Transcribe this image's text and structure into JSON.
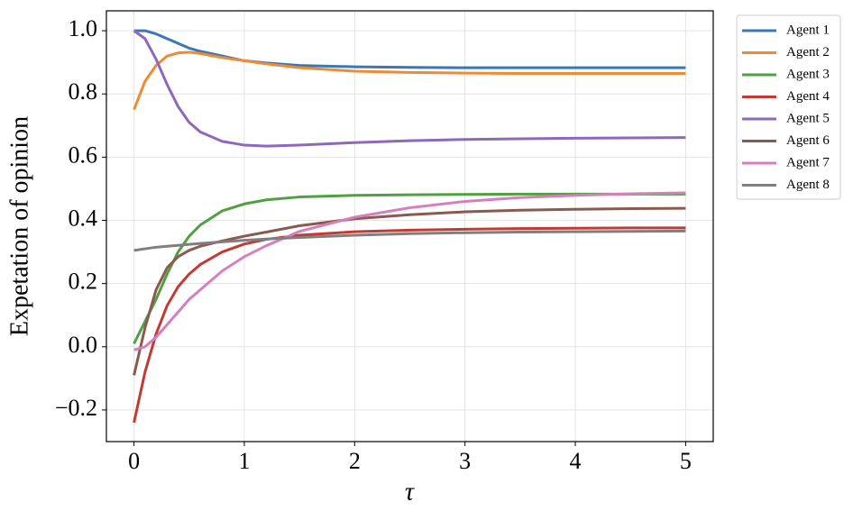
{
  "chart_data": {
    "type": "line",
    "xlabel": "τ",
    "ylabel": "Expetation of opinion",
    "x": [
      0,
      0.1,
      0.2,
      0.3,
      0.4,
      0.5,
      0.6,
      0.8,
      1.0,
      1.2,
      1.5,
      2,
      2.5,
      3,
      3.5,
      4,
      4.5,
      5
    ],
    "series": [
      {
        "name": "Agent 1",
        "color": "#3a78b4",
        "values": [
          1.0,
          1.0,
          0.99,
          0.975,
          0.96,
          0.945,
          0.935,
          0.92,
          0.905,
          0.898,
          0.89,
          0.886,
          0.884,
          0.883,
          0.883,
          0.883,
          0.883,
          0.883
        ]
      },
      {
        "name": "Agent 2",
        "color": "#f08a34",
        "values": [
          0.75,
          0.84,
          0.89,
          0.92,
          0.93,
          0.932,
          0.928,
          0.915,
          0.905,
          0.895,
          0.883,
          0.872,
          0.868,
          0.866,
          0.865,
          0.865,
          0.865,
          0.865
        ]
      },
      {
        "name": "Agent 3",
        "color": "#4fa040",
        "values": [
          0.01,
          0.08,
          0.15,
          0.23,
          0.3,
          0.35,
          0.385,
          0.43,
          0.452,
          0.465,
          0.474,
          0.479,
          0.481,
          0.482,
          0.483,
          0.483,
          0.483,
          0.483
        ]
      },
      {
        "name": "Agent 4",
        "color": "#c23b33",
        "values": [
          -0.24,
          -0.08,
          0.04,
          0.13,
          0.19,
          0.23,
          0.26,
          0.3,
          0.325,
          0.34,
          0.353,
          0.364,
          0.369,
          0.372,
          0.374,
          0.375,
          0.376,
          0.376
        ]
      },
      {
        "name": "Agent 5",
        "color": "#8e68bc",
        "values": [
          1.0,
          0.975,
          0.91,
          0.83,
          0.76,
          0.71,
          0.68,
          0.65,
          0.638,
          0.635,
          0.638,
          0.646,
          0.652,
          0.656,
          0.658,
          0.66,
          0.661,
          0.662
        ]
      },
      {
        "name": "Agent 6",
        "color": "#8b5a4e",
        "values": [
          -0.09,
          0.06,
          0.18,
          0.25,
          0.285,
          0.305,
          0.318,
          0.335,
          0.35,
          0.363,
          0.383,
          0.405,
          0.418,
          0.427,
          0.432,
          0.435,
          0.437,
          0.438
        ]
      },
      {
        "name": "Agent 7",
        "color": "#d67fc0",
        "values": [
          -0.01,
          0.0,
          0.03,
          0.07,
          0.11,
          0.15,
          0.18,
          0.24,
          0.285,
          0.32,
          0.365,
          0.41,
          0.44,
          0.46,
          0.472,
          0.479,
          0.484,
          0.487
        ]
      },
      {
        "name": "Agent 8",
        "color": "#7f7f7f",
        "values": [
          0.305,
          0.31,
          0.315,
          0.318,
          0.321,
          0.324,
          0.327,
          0.332,
          0.337,
          0.341,
          0.346,
          0.353,
          0.358,
          0.361,
          0.363,
          0.364,
          0.365,
          0.366
        ]
      }
    ],
    "xlim": [
      -0.25,
      5.25
    ],
    "ylim": [
      -0.3,
      1.063
    ],
    "xticks": [
      0,
      1,
      2,
      3,
      4,
      5
    ],
    "yticks": [
      {
        "value": -0.2,
        "label": "−0.2"
      },
      {
        "value": 0,
        "label": "0.0"
      },
      {
        "value": 0.2,
        "label": "0.2"
      },
      {
        "value": 0.4,
        "label": "0.4"
      },
      {
        "value": 0.6,
        "label": "0.6"
      },
      {
        "value": 0.8,
        "label": "0.8"
      },
      {
        "value": 1.0,
        "label": "1.0"
      }
    ],
    "grid": true,
    "legend": "outside-upper-right"
  }
}
